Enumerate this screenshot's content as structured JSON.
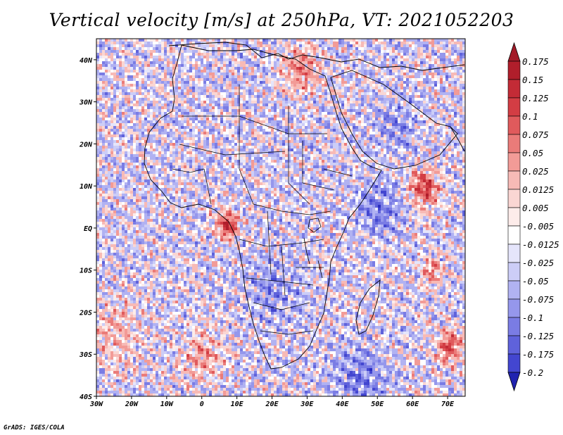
{
  "title": "Vertical velocity [m/s] at 250hPa, VT: 2021052203",
  "credit": "GrADS: IGES/COLA",
  "map": {
    "lon_range": [
      -30,
      75
    ],
    "lat_range": [
      -40,
      45
    ],
    "lon_ticks": [
      {
        "value": -30,
        "label": "30W"
      },
      {
        "value": -20,
        "label": "20W"
      },
      {
        "value": -10,
        "label": "10W"
      },
      {
        "value": 0,
        "label": "0"
      },
      {
        "value": 10,
        "label": "10E"
      },
      {
        "value": 20,
        "label": "20E"
      },
      {
        "value": 30,
        "label": "30E"
      },
      {
        "value": 40,
        "label": "40E"
      },
      {
        "value": 50,
        "label": "50E"
      },
      {
        "value": 60,
        "label": "60E"
      },
      {
        "value": 70,
        "label": "70E"
      }
    ],
    "lat_ticks": [
      {
        "value": 40,
        "label": "40N"
      },
      {
        "value": 30,
        "label": "30N"
      },
      {
        "value": 20,
        "label": "20N"
      },
      {
        "value": 10,
        "label": "10N"
      },
      {
        "value": 0,
        "label": "EQ"
      },
      {
        "value": -10,
        "label": "10S"
      },
      {
        "value": -20,
        "label": "20S"
      },
      {
        "value": -30,
        "label": "30S"
      },
      {
        "value": -40,
        "label": "40S"
      }
    ],
    "hotspots": [
      {
        "lon": 7,
        "lat": 1,
        "value": 0.175,
        "spread": 3
      },
      {
        "lon": 63,
        "lat": 10,
        "value": 0.15,
        "spread": 4
      },
      {
        "lon": 65,
        "lat": -10,
        "value": 0.1,
        "spread": 3
      },
      {
        "lon": 70,
        "lat": -28,
        "value": 0.125,
        "spread": 4
      },
      {
        "lon": 0,
        "lat": -30,
        "value": 0.075,
        "spread": 6
      },
      {
        "lon": -25,
        "lat": -25,
        "value": 0.05,
        "spread": 8
      },
      {
        "lon": 28,
        "lat": 38,
        "value": 0.1,
        "spread": 5
      },
      {
        "lon": 50,
        "lat": 5,
        "value": -0.075,
        "spread": 6
      },
      {
        "lon": 20,
        "lat": -15,
        "value": -0.05,
        "spread": 8
      },
      {
        "lon": 45,
        "lat": -35,
        "value": -0.075,
        "spread": 7
      },
      {
        "lon": 55,
        "lat": 25,
        "value": -0.05,
        "spread": 6
      }
    ]
  },
  "colorbar": {
    "levels": [
      {
        "label": "0.175",
        "color": "#b01e2b"
      },
      {
        "label": "0.15",
        "color": "#c32b36"
      },
      {
        "label": "0.125",
        "color": "#d33d44"
      },
      {
        "label": "0.1",
        "color": "#e05a5c"
      },
      {
        "label": "0.075",
        "color": "#ea7b79"
      },
      {
        "label": "0.05",
        "color": "#f29b97"
      },
      {
        "label": "0.025",
        "color": "#f7bab6"
      },
      {
        "label": "0.0125",
        "color": "#fad6d3"
      },
      {
        "label": "0.005",
        "color": "#fdecea"
      },
      {
        "label": "-0.005",
        "color": "#ffffff"
      },
      {
        "label": "-0.0125",
        "color": "#e5e5fb"
      },
      {
        "label": "-0.025",
        "color": "#cccdf7"
      },
      {
        "label": "-0.05",
        "color": "#b1b2f2"
      },
      {
        "label": "-0.075",
        "color": "#9597ec"
      },
      {
        "label": "-0.1",
        "color": "#7a7ce4"
      },
      {
        "label": "-0.125",
        "color": "#5f62db"
      },
      {
        "label": "-0.175",
        "color": "#4346d0"
      },
      {
        "label": "-0.2",
        "color": "#2a2dc2"
      }
    ],
    "top_tip_color": "#a31b28",
    "bottom_tip_color": "#2023b0"
  }
}
